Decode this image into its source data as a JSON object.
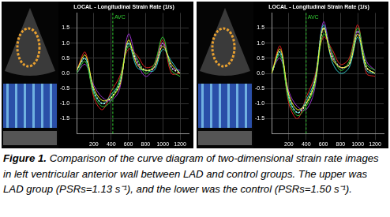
{
  "caption": {
    "label": "Figure 1.",
    "text": "Comparison of the curve diagram of two-dimensional strain rate images in left ventricular anterior wall between LAD and control groups. The upper was LAD group (PSRs=1.13 s⁻¹), and the lower was the control (PSRs=1.50 s⁻¹)."
  },
  "chart_data": [
    {
      "type": "line",
      "title": "LOCAL - Longitudinal Strain Rate (1/s)",
      "x": [
        0,
        100,
        200,
        300,
        400,
        500,
        600,
        700,
        800,
        900,
        1000,
        1100,
        1200
      ],
      "series": [
        {
          "color": "#ffff33",
          "values": [
            0.1,
            0.6,
            -0.5,
            -0.9,
            -0.8,
            -0.4,
            1.1,
            0.3,
            0.1,
            0.2,
            0.9,
            0.3,
            0.0
          ]
        },
        {
          "color": "#33cc33",
          "values": [
            0.0,
            0.4,
            -0.7,
            -1.1,
            -0.9,
            -0.2,
            0.9,
            0.5,
            0.0,
            0.3,
            1.2,
            0.1,
            -0.1
          ]
        },
        {
          "color": "#33cccc",
          "values": [
            0.1,
            0.5,
            -0.6,
            -1.0,
            -0.7,
            -0.3,
            1.0,
            0.2,
            0.1,
            0.1,
            0.8,
            0.4,
            0.0
          ]
        },
        {
          "color": "#9933cc",
          "values": [
            0.0,
            0.3,
            -0.4,
            -0.8,
            -0.9,
            -0.5,
            1.3,
            0.4,
            -0.1,
            0.2,
            1.0,
            0.2,
            0.1
          ]
        },
        {
          "color": "#dd2222",
          "values": [
            0.1,
            0.7,
            -0.8,
            -1.2,
            -0.6,
            -0.1,
            0.8,
            0.6,
            0.2,
            0.3,
            1.1,
            0.0,
            0.0
          ]
        },
        {
          "color": "#ffffff",
          "line_style": "dotted",
          "values": [
            0.1,
            0.5,
            -0.6,
            -1.0,
            -0.8,
            -0.3,
            1.0,
            0.4,
            0.1,
            0.2,
            1.0,
            0.2,
            0.0
          ]
        }
      ],
      "xlim": [
        0,
        1300
      ],
      "xticks": [
        200,
        400,
        600,
        800,
        1000,
        1200
      ],
      "ylim": [
        -2,
        2
      ],
      "yticks": [
        {
          "value": -1.5,
          "label": "-1.5"
        },
        {
          "value": -1,
          "label": "-1.0"
        },
        {
          "value": -0.5,
          "label": "-0.5"
        },
        {
          "value": 0,
          "label": "0.0"
        },
        {
          "value": 0.5,
          "label": "0.5"
        },
        {
          "value": 1,
          "label": "1.0"
        },
        {
          "value": 1.5,
          "label": "1.5"
        }
      ],
      "grid": true,
      "annotations": [
        {
          "text": "AVC",
          "x": 420
        }
      ]
    },
    {
      "type": "line",
      "title": "LOCAL - Longitudinal Strain Rate (1/s)",
      "x": [
        0,
        100,
        200,
        300,
        400,
        500,
        600,
        700,
        800,
        900,
        1000,
        1100,
        1200
      ],
      "series": [
        {
          "color": "#ffff33",
          "values": [
            0.0,
            0.8,
            -0.7,
            -1.2,
            -1.0,
            -0.3,
            1.5,
            0.5,
            0.2,
            0.3,
            1.3,
            0.2,
            0.0
          ]
        },
        {
          "color": "#33cc33",
          "values": [
            0.1,
            0.6,
            -0.9,
            -1.4,
            -1.1,
            -0.4,
            1.3,
            0.7,
            0.1,
            0.4,
            1.5,
            0.3,
            0.1
          ]
        },
        {
          "color": "#33cccc",
          "values": [
            0.0,
            0.7,
            -0.8,
            -1.3,
            -0.9,
            -0.2,
            1.6,
            0.4,
            0.0,
            0.2,
            1.2,
            0.1,
            0.0
          ]
        },
        {
          "color": "#9933cc",
          "values": [
            0.1,
            0.5,
            -0.6,
            -1.1,
            -1.2,
            -0.5,
            1.7,
            0.6,
            0.2,
            0.3,
            1.4,
            0.4,
            0.1
          ]
        },
        {
          "color": "#dd2222",
          "values": [
            0.0,
            0.9,
            -1.0,
            -1.5,
            -0.8,
            -0.1,
            1.2,
            0.8,
            0.3,
            0.5,
            1.6,
            0.0,
            -0.1
          ]
        },
        {
          "color": "#ffffff",
          "line_style": "dotted",
          "values": [
            0.0,
            0.7,
            -0.8,
            -1.3,
            -1.0,
            -0.3,
            1.5,
            0.6,
            0.2,
            0.3,
            1.4,
            0.2,
            0.0
          ]
        }
      ],
      "xlim": [
        0,
        1300
      ],
      "xticks": [
        200,
        400,
        600,
        800,
        1000,
        1200
      ],
      "ylim": [
        -2,
        2
      ],
      "yticks": [
        {
          "value": -1.5,
          "label": "-1.5"
        },
        {
          "value": -1,
          "label": "-1.0"
        },
        {
          "value": -0.5,
          "label": "-0.5"
        },
        {
          "value": 0,
          "label": "0.0"
        },
        {
          "value": 0.5,
          "label": "0.5"
        },
        {
          "value": 1,
          "label": "1.0"
        },
        {
          "value": 1.5,
          "label": "1.5"
        }
      ],
      "grid": true,
      "annotations": [
        {
          "text": "AVC",
          "x": 400
        }
      ]
    }
  ]
}
